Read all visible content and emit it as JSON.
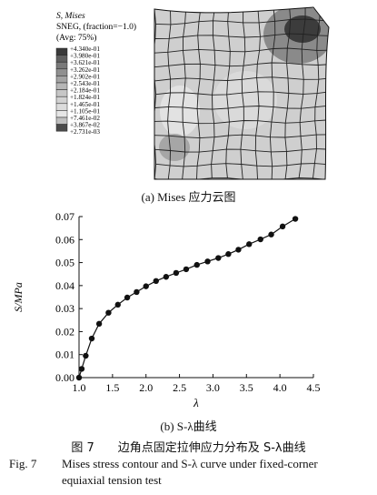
{
  "contour": {
    "title_lines": [
      "S, Mises",
      "SNEG, (fraction=−1.0)",
      "(Avg: 75%)"
    ],
    "legend_values": [
      "+4.340e-01",
      "+3.980e-01",
      "+3.621e-01",
      "+3.262e-01",
      "+2.902e-01",
      "+2.543e-01",
      "+2.184e-01",
      "+1.824e-01",
      "+1.465e-01",
      "+1.105e-01",
      "+7.461e-02",
      "+3.867e-02",
      "+2.731e-03"
    ],
    "legend_colors": [
      "#3a3a3a",
      "#606060",
      "#7a7a7a",
      "#909090",
      "#a4a4a4",
      "#b6b6b6",
      "#c6c6c6",
      "#d2d2d2",
      "#dcdcdc",
      "#e6e6e6",
      "#c0c0c0",
      "#4a4a4a"
    ],
    "caption": "(a) Mises 应力云图"
  },
  "chart_data": {
    "type": "line",
    "xlabel": "λ",
    "ylabel": "S/MPa",
    "xlim": [
      1.0,
      4.5
    ],
    "ylim": [
      0.0,
      0.07
    ],
    "xticks": [
      "1.0",
      "1.5",
      "2.0",
      "2.5",
      "3.0",
      "3.5",
      "4.0",
      "4.5"
    ],
    "yticks": [
      "0.00",
      "0.01",
      "0.02",
      "0.03",
      "0.04",
      "0.05",
      "0.06",
      "0.07"
    ],
    "grid": false,
    "series": [
      {
        "x": [
          1.0,
          1.04,
          1.1,
          1.19,
          1.3,
          1.44,
          1.58,
          1.72,
          1.86,
          2.0,
          2.15,
          2.3,
          2.45,
          2.6,
          2.76,
          2.92,
          3.08,
          3.23,
          3.38,
          3.54,
          3.71,
          3.87,
          4.04,
          4.23
        ],
        "y": [
          0.0,
          0.0038,
          0.0095,
          0.017,
          0.0234,
          0.0282,
          0.0317,
          0.0348,
          0.0372,
          0.0397,
          0.042,
          0.0438,
          0.0455,
          0.0471,
          0.049,
          0.0505,
          0.052,
          0.0537,
          0.0556,
          0.058,
          0.0601,
          0.0622,
          0.0657,
          0.069
        ]
      }
    ],
    "caption": "(b) S-λ曲线"
  },
  "figure": {
    "cn": "图 7　　边角点固定拉伸应力分布及 S-λ曲线",
    "en_label": "Fig. 7",
    "en_line1": "Mises stress contour and S-λ curve under fixed-corner",
    "en_line2": "equiaxial tension test"
  }
}
